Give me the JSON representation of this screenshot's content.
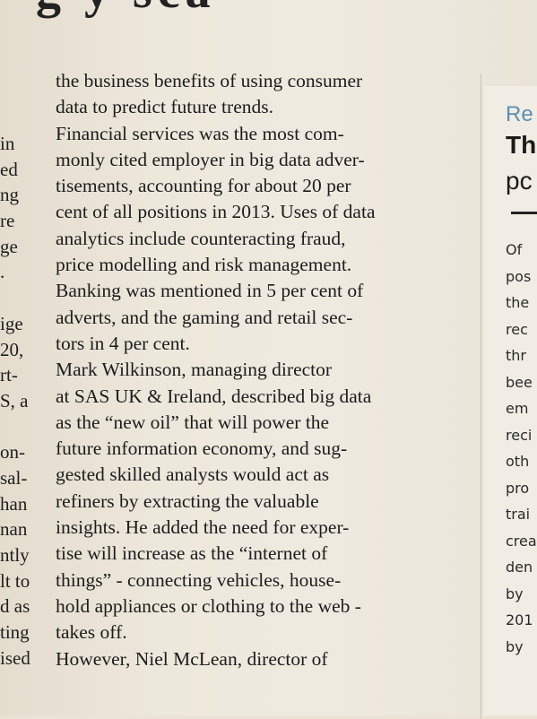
{
  "headline_fragment": "g  y  sca",
  "left_column": [
    "in",
    "ed",
    "ng",
    "re",
    "ge",
    ".",
    "",
    "ige",
    "20,",
    "rt-",
    "S, a",
    "",
    "on-",
    "sal-",
    "han",
    "nan",
    "ntly",
    "lt to",
    "d as",
    "ting",
    "ised"
  ],
  "main_column": [
    "the business benefits of using consumer",
    "data to predict future trends.",
    "    Financial services was the most com-",
    "monly cited employer in big data adver-",
    "tisements, accounting for about 20 per",
    "cent of all positions in 2013. Uses of data",
    "analytics include counteracting fraud,",
    "price modelling and risk management.",
    "Banking was mentioned in 5 per cent of",
    "adverts, and the gaming and retail sec-",
    "tors in 4 per cent.",
    "    Mark Wilkinson, managing director",
    "at SAS UK & Ireland, described big data",
    "as the “new oil” that will power the",
    "future information economy, and sug-",
    "gested skilled analysts would act as",
    "refiners by extracting the valuable",
    "insights. He added the need for exper-",
    "tise will increase as the “internet of",
    "things” - connecting vehicles, house-",
    "hold appliances or clothing to the web -",
    "takes off.",
    "    However, Niel McLean, director of"
  ],
  "right_column": {
    "kicker": "Re",
    "headline_line1": "Th",
    "headline_line2": "pc",
    "body": [
      "Of",
      "pos",
      "the",
      "rec",
      "thr",
      "bee",
      "em",
      "reci",
      "oth",
      "pro",
      "trai",
      "crea",
      "den",
      "by",
      "201",
      "by"
    ]
  }
}
